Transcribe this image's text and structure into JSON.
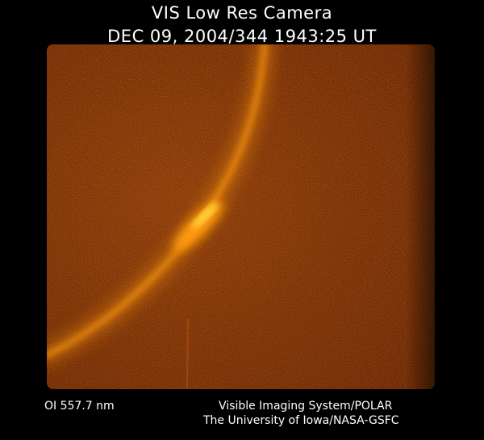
{
  "header": {
    "title": "VIS Low Res Camera",
    "timestamp": "DEC 09, 2004/344 1943:25 UT"
  },
  "image": {
    "subject": "auroral-oval-arc",
    "palette": {
      "background": "#000000",
      "field_dark": "#6b2604",
      "field_mid": "#8a3a08",
      "arc_glow": "#ff9a10",
      "arc_core": "#ffe040",
      "text": "#ffffff"
    }
  },
  "footer": {
    "wavelength": "OI  557.7 nm",
    "system": "Visible Imaging System/POLAR",
    "institution": "The University of Iowa/NASA-GSFC"
  }
}
